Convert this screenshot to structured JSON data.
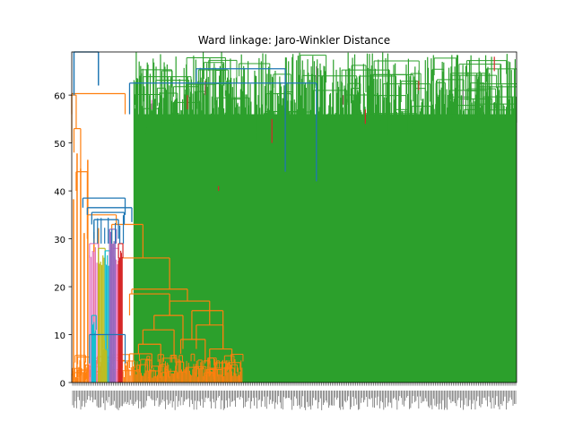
{
  "chart_data": {
    "type": "dendrogram",
    "title": "Ward linkage: Jaro-Winkler Distance",
    "xlabel": "",
    "ylabel": "",
    "ylim": [
      0,
      69
    ],
    "y_ticks": [
      0,
      10,
      20,
      30,
      40,
      50,
      60
    ],
    "grid": false,
    "legend": "none",
    "leaf_count_estimate": 900,
    "colors": {
      "orange_cluster": "#ff7f0e",
      "green_cluster": "#2ca02c",
      "red_cluster": "#d62728",
      "purple_cluster": "#9467bd",
      "brown_cluster": "#8c564b",
      "pink_cluster": "#e377c2",
      "gray_cluster": "#7f7f7f",
      "olive_cluster": "#bcbd22",
      "cyan_cluster": "#17becf",
      "above_threshold": "#1f77b4"
    },
    "clusters": [
      {
        "name": "orange",
        "color": "orange_cluster",
        "x_range": [
          0,
          0.38
        ],
        "top_height": 62
      },
      {
        "name": "green",
        "color": "green_cluster",
        "x_range": [
          0.13,
          1.0
        ],
        "top_height": 69
      },
      {
        "name": "small",
        "color": "red_cluster",
        "x_range": [
          0.02,
          0.12
        ],
        "top_height": 33
      }
    ],
    "merges": [
      {
        "height": 62.5,
        "x_fraction": 0.76
      },
      {
        "height": 65.5,
        "x_fraction": 0.48
      },
      {
        "height": 38.5,
        "x_fraction": 0.05
      },
      {
        "height": 33.0,
        "x_fraction": 0.12
      },
      {
        "height": 26.0,
        "x_fraction": 0.09
      },
      {
        "height": 17.0,
        "x_fraction": 0.22
      }
    ]
  }
}
